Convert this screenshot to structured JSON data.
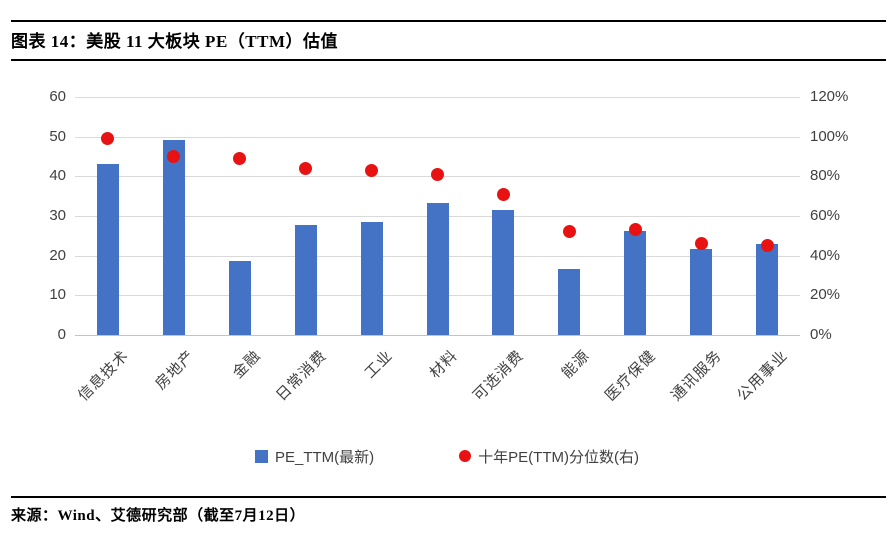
{
  "figure": {
    "title": "图表 14：美股 11 大板块 PE（TTM）估值",
    "source": "来源：Wind、艾德研究部（截至7月12日）"
  },
  "chart_data": {
    "type": "bar",
    "subtype": "combo-bar-scatter",
    "title": "美股 11 大板块 PE（TTM）估值",
    "categories": [
      "信息技术",
      "房地产",
      "金融",
      "日常消费",
      "工业",
      "材料",
      "可选消费",
      "能源",
      "医疗保健",
      "通讯服务",
      "公用事业"
    ],
    "series": [
      {
        "name": "PE_TTM(最新)",
        "type": "bar",
        "axis": "left",
        "color": "#4472c4",
        "values": [
          43.0,
          49.2,
          18.7,
          27.8,
          28.6,
          33.3,
          31.5,
          16.7,
          26.3,
          21.7,
          23.0
        ]
      },
      {
        "name": "十年PE(TTM)分位数(右)",
        "type": "scatter",
        "axis": "right",
        "color": "#e81212",
        "unit": "%",
        "values": [
          99,
          90,
          89,
          84,
          83,
          81,
          71,
          52,
          53,
          46,
          45
        ]
      }
    ],
    "left_axis": {
      "min": 0,
      "max": 60,
      "ticks": [
        0,
        10,
        20,
        30,
        40,
        50,
        60
      ]
    },
    "right_axis": {
      "min": 0,
      "max": 120,
      "ticks": [
        0,
        20,
        40,
        60,
        80,
        100,
        120
      ],
      "tick_suffix": "%"
    },
    "grid": "horizontal",
    "legend_position": "bottom"
  }
}
